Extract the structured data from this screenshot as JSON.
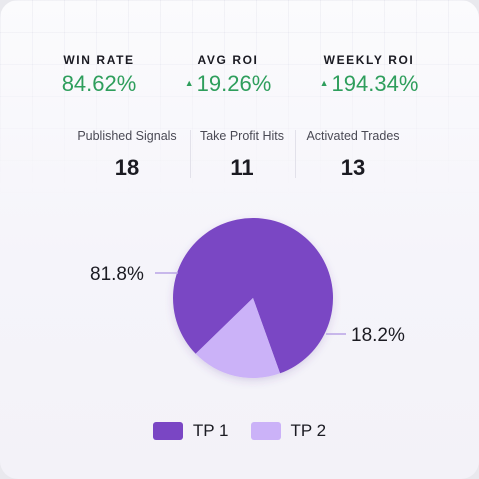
{
  "kpis": [
    {
      "label": "WIN RATE",
      "value": "84.62%",
      "trend": false
    },
    {
      "label": "AVG ROI",
      "value": "19.26%",
      "trend": true
    },
    {
      "label": "WEEKLY ROI",
      "value": "194.34%",
      "trend": true
    }
  ],
  "trend_icon": "triangle-up-icon",
  "stats": [
    {
      "label": "Published Signals",
      "value": "18"
    },
    {
      "label": "Take Profit Hits",
      "value": "11"
    },
    {
      "label": "Activated Trades",
      "value": "13"
    }
  ],
  "colors": {
    "positive": "#2e9e5c",
    "tp1": "#7a46c4",
    "tp2": "#cbb2f8"
  },
  "chart_data": {
    "type": "pie",
    "slices": [
      {
        "name": "TP 1",
        "value": 81.8,
        "label": "81.8%"
      },
      {
        "name": "TP 2",
        "value": 18.2,
        "label": "18.2%"
      }
    ],
    "legend_position": "bottom"
  }
}
